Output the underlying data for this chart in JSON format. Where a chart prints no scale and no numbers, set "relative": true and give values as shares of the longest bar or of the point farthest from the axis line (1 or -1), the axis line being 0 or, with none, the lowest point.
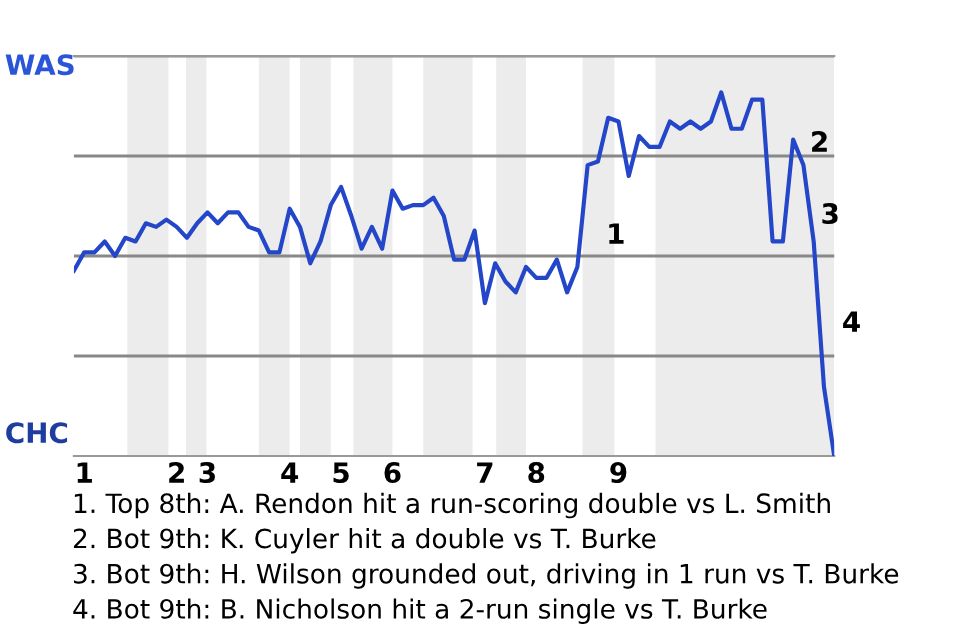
{
  "chart_data": {
    "type": "line",
    "relative": true,
    "categories": [
      null,
      "1",
      null,
      null,
      null,
      null,
      null,
      null,
      null,
      null,
      "2",
      null,
      null,
      "3",
      null,
      null,
      null,
      null,
      null,
      null,
      null,
      "4",
      null,
      null,
      null,
      null,
      "5",
      null,
      null,
      null,
      null,
      "6",
      null,
      null,
      null,
      null,
      null,
      null,
      null,
      null,
      "7",
      null,
      null,
      null,
      null,
      "8",
      null,
      null,
      null,
      null,
      null,
      null,
      null,
      "9",
      null,
      null,
      null,
      null,
      null,
      null,
      null,
      null,
      null,
      null,
      null,
      null,
      null,
      null,
      null,
      null,
      null,
      null,
      null,
      null,
      null
    ],
    "series": [
      {
        "color": "#2446c8",
        "values": [
          0.51,
          0.56,
          0.56,
          0.59,
          0.55,
          0.6,
          0.59,
          0.64,
          0.63,
          0.65,
          0.63,
          0.6,
          0.64,
          0.67,
          0.64,
          0.67,
          0.67,
          0.63,
          0.62,
          0.56,
          0.56,
          0.68,
          0.63,
          0.53,
          0.59,
          0.69,
          0.74,
          0.66,
          0.57,
          0.63,
          0.57,
          0.73,
          0.68,
          0.69,
          0.69,
          0.71,
          0.66,
          0.54,
          0.54,
          0.62,
          0.42,
          0.53,
          0.48,
          0.45,
          0.52,
          0.49,
          0.49,
          0.54,
          0.45,
          0.52,
          0.8,
          0.81,
          0.93,
          0.92,
          0.77,
          0.88,
          0.85,
          0.85,
          0.92,
          0.9,
          0.92,
          0.9,
          0.92,
          1,
          0.9,
          0.9,
          0.98,
          0.98,
          0.59,
          0.59,
          0.87,
          0.8,
          0.59,
          0.19,
          0
        ]
      }
    ],
    "grid": "y",
    "annotations": [
      "WAS",
      "CHC",
      "1",
      "2",
      "3",
      "4",
      "1. Top 8th: A. Rendon hit a run-scoring double vs L. Smith",
      "2. Bot 9th: K. Cuyler hit a double vs T. Burke",
      "3. Bot 9th: H. Wilson grounded out, driving in 1 run vs T. Burke",
      "4. Bot 9th: B. Nicholson hit a 2-run single vs T. Burke"
    ]
  }
}
